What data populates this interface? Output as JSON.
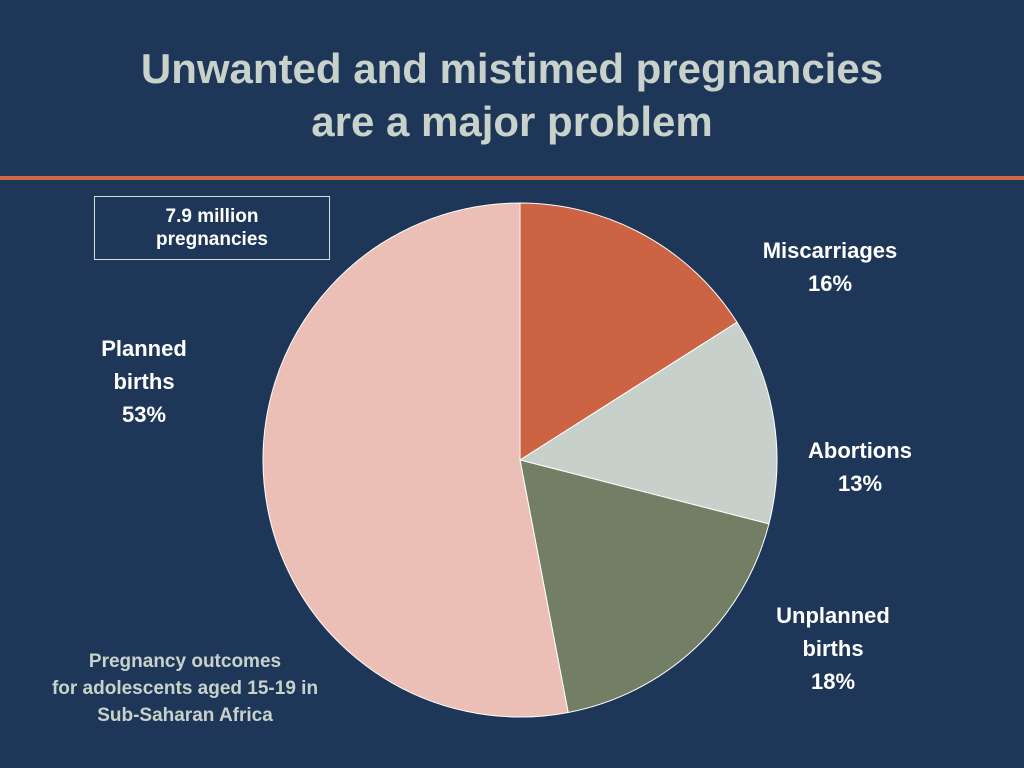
{
  "title": {
    "line1": "Unwanted and mistimed pregnancies",
    "line2": "are a major problem"
  },
  "total_box": {
    "line1": "7.9 million",
    "line2": "pregnancies"
  },
  "caption": {
    "line1": "Pregnancy outcomes",
    "line2": "for adolescents aged 15-19 in",
    "line3": "Sub-Saharan Africa"
  },
  "colors": {
    "background": "#1e3758",
    "title_text": "#c9d1cb",
    "accent_rule": "#cc6a47",
    "label_text": "#ffffff"
  },
  "chart_data": {
    "type": "pie",
    "title": "",
    "start_angle_deg": 0,
    "direction": "clockwise",
    "slices": [
      {
        "name": "Miscarriages",
        "lines": [
          "Miscarriages"
        ],
        "value": 16,
        "label": "16%",
        "color": "#cc6444"
      },
      {
        "name": "Abortions",
        "lines": [
          "Abortions"
        ],
        "value": 13,
        "label": "13%",
        "color": "#c8d0cb"
      },
      {
        "name": "Unplanned births",
        "lines": [
          "Unplanned",
          "births"
        ],
        "value": 18,
        "label": "18%",
        "color": "#737f64"
      },
      {
        "name": "Planned births",
        "lines": [
          "Planned",
          "births"
        ],
        "value": 53,
        "label": "53%",
        "color": "#ebbfb5"
      }
    ]
  }
}
